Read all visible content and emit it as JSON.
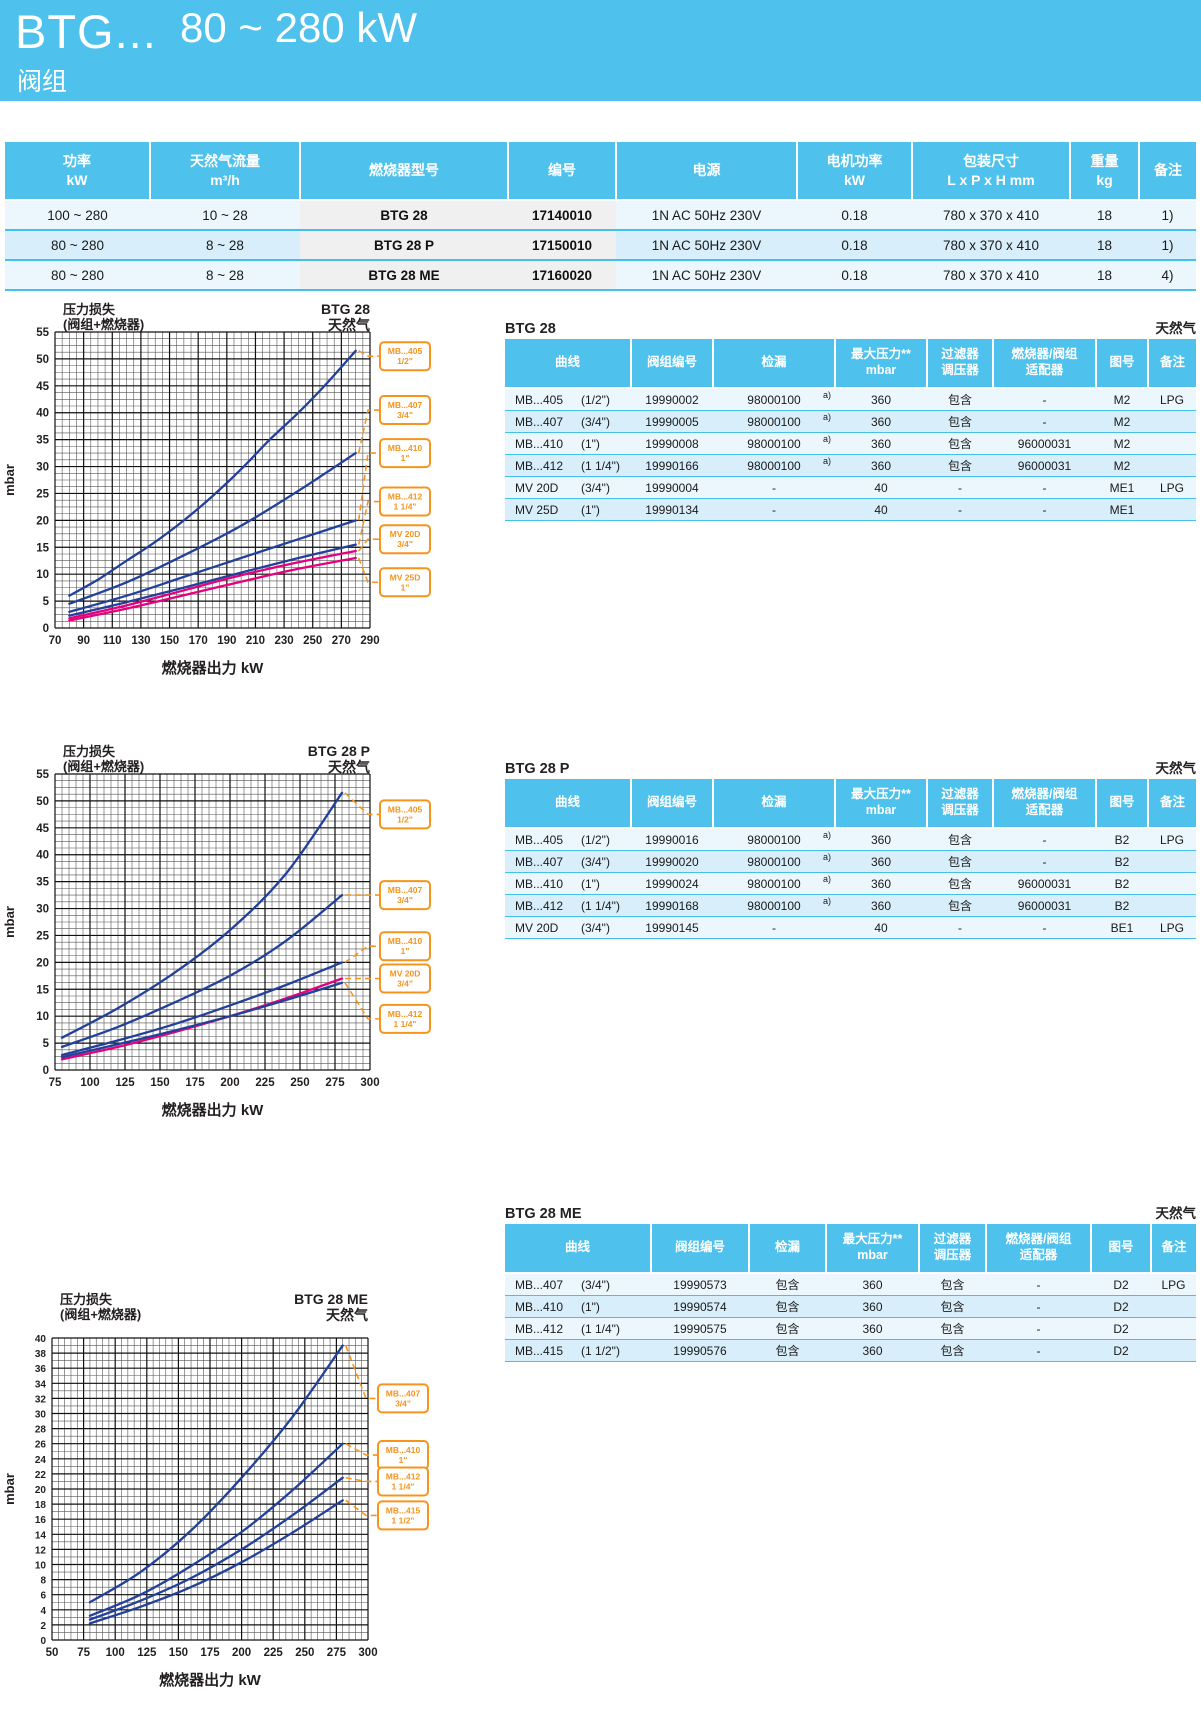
{
  "header": {
    "model": "BTG...",
    "power_range": "80 ~ 280 kW",
    "subtitle": "阀组"
  },
  "colors": {
    "brand_blue": "#4ec1ec",
    "row_light": "#ebf7fd",
    "row_dark": "#d8eefa",
    "curve_blue": "#23409a",
    "curve_pink": "#e6007e",
    "label_orange": "#f7941d",
    "grid": "#231f20"
  },
  "main_table": {
    "headers": [
      {
        "l1": "功率",
        "l2": "kW"
      },
      {
        "l1": "天然气流量",
        "l2": "m³/h"
      },
      {
        "l1": "燃烧器型号",
        "l2": ""
      },
      {
        "l1": "编号",
        "l2": ""
      },
      {
        "l1": "电源",
        "l2": ""
      },
      {
        "l1": "电机功率",
        "l2": "kW"
      },
      {
        "l1": "包装尺寸",
        "l2": "L x P x H  mm"
      },
      {
        "l1": "重量",
        "l2": "kg"
      },
      {
        "l1": "备注",
        "l2": ""
      }
    ],
    "rows": [
      [
        "100 ~ 280",
        "10 ~ 28",
        "BTG 28",
        "17140010",
        "1N AC 50Hz 230V",
        "0.18",
        "780 x 370 x 410",
        "18",
        "1)"
      ],
      [
        "80 ~ 280",
        "8 ~ 28",
        "BTG 28 P",
        "17150010",
        "1N AC 50Hz 230V",
        "0.18",
        "780 x 370 x 410",
        "18",
        "1)"
      ],
      [
        "80 ~ 280",
        "8 ~ 28",
        "BTG 28 ME",
        "17160020",
        "1N AC 50Hz 230V",
        "0.18",
        "780 x 370 x 410",
        "18",
        "4)"
      ]
    ]
  },
  "sub_headers": [
    {
      "l1": "曲线",
      "l2": ""
    },
    {
      "l1": "阀组编号",
      "l2": ""
    },
    {
      "l1": "检漏",
      "l2": ""
    },
    {
      "l1": "最大压力**",
      "l2": "mbar"
    },
    {
      "l1": "过滤器",
      "l2": "调压器"
    },
    {
      "l1": "燃烧器/阀组",
      "l2": "适配器"
    },
    {
      "l1": "图号",
      "l2": ""
    },
    {
      "l1": "备注",
      "l2": ""
    }
  ],
  "sections": [
    {
      "table": {
        "title": "BTG 28",
        "right_title": "天然气",
        "rows": [
          {
            "curve": "MB...405",
            "size": "(1/2\")",
            "code": "19990002",
            "leak": "98000100",
            "leak_note": "a)",
            "pmax": "360",
            "filter": "包含",
            "adapter": "-",
            "fig": "M2",
            "note": "LPG"
          },
          {
            "curve": "MB...407",
            "size": "(3/4\")",
            "code": "19990005",
            "leak": "98000100",
            "leak_note": "a)",
            "pmax": "360",
            "filter": "包含",
            "adapter": "-",
            "fig": "M2",
            "note": ""
          },
          {
            "curve": "MB...410",
            "size": "(1\")",
            "code": "19990008",
            "leak": "98000100",
            "leak_note": "a)",
            "pmax": "360",
            "filter": "包含",
            "adapter": "96000031",
            "fig": "M2",
            "note": ""
          },
          {
            "curve": "MB...412",
            "size": "(1 1/4\")",
            "code": "19990166",
            "leak": "98000100",
            "leak_note": "a)",
            "pmax": "360",
            "filter": "包含",
            "adapter": "96000031",
            "fig": "M2",
            "note": ""
          },
          {
            "curve": "MV 20D",
            "size": "(3/4\")",
            "code": "19990004",
            "leak": "-",
            "leak_note": "",
            "pmax": "40",
            "filter": "-",
            "adapter": "-",
            "fig": "ME1",
            "note": "LPG"
          },
          {
            "curve": "MV 25D",
            "size": "(1\")",
            "code": "19990134",
            "leak": "-",
            "leak_note": "",
            "pmax": "40",
            "filter": "-",
            "adapter": "-",
            "fig": "ME1",
            "note": ""
          }
        ]
      },
      "chart": {
        "type": "line",
        "title_left_1": "压力损失",
        "title_left_2": "(阀组+燃烧器)",
        "title_right_1": "BTG 28",
        "title_right_2": "天然气",
        "ylabel": "mbar",
        "xlabel": "燃烧器出力  kW",
        "xmin": 70,
        "xmax": 290,
        "xtick": 20,
        "xminor": 5,
        "ymin": 0,
        "ymax": 55,
        "ytick": 5,
        "yminor": 1.25,
        "series": [
          {
            "name": "MB...405 1/2\"",
            "color": "#23409a",
            "points": [
              [
                80,
                6
              ],
              [
                100,
                9
              ],
              [
                120,
                12.5
              ],
              [
                140,
                16
              ],
              [
                160,
                20
              ],
              [
                180,
                24.5
              ],
              [
                200,
                29.5
              ],
              [
                220,
                35
              ],
              [
                240,
                40
              ],
              [
                260,
                45.5
              ],
              [
                280,
                51.5
              ]
            ]
          },
          {
            "name": "MB...407 3/4\"",
            "color": "#23409a",
            "points": [
              [
                80,
                4.5
              ],
              [
                120,
                8.5
              ],
              [
                160,
                13.5
              ],
              [
                200,
                19
              ],
              [
                240,
                25.5
              ],
              [
                280,
                32.5
              ]
            ]
          },
          {
            "name": "MB...410 1\"",
            "color": "#23409a",
            "points": [
              [
                80,
                3
              ],
              [
                120,
                6
              ],
              [
                160,
                9.5
              ],
              [
                200,
                13
              ],
              [
                240,
                16.5
              ],
              [
                280,
                20
              ]
            ]
          },
          {
            "name": "MB...412 1 1/4\"",
            "color": "#23409a",
            "points": [
              [
                80,
                2.3
              ],
              [
                120,
                4.8
              ],
              [
                160,
                7.5
              ],
              [
                200,
                10.3
              ],
              [
                240,
                13
              ],
              [
                280,
                15.5
              ]
            ]
          },
          {
            "name": "MV 20D 3/4\"",
            "color": "#e6007e",
            "points": [
              [
                80,
                1.8
              ],
              [
                120,
                4.2
              ],
              [
                160,
                7
              ],
              [
                200,
                9.8
              ],
              [
                240,
                12.2
              ],
              [
                280,
                14.3
              ]
            ]
          },
          {
            "name": "MV 25D 1\"",
            "color": "#e6007e",
            "points": [
              [
                80,
                1.4
              ],
              [
                120,
                3.6
              ],
              [
                160,
                6.1
              ],
              [
                200,
                8.6
              ],
              [
                240,
                11
              ],
              [
                280,
                13
              ]
            ]
          }
        ],
        "labels": [
          {
            "line1": "MB...405",
            "line2": "1/2\"",
            "y": 50.5,
            "series": 0
          },
          {
            "line1": "MB...407",
            "line2": "3/4\"",
            "y": 40.5,
            "series": 1
          },
          {
            "line1": "MB...410",
            "line2": "1\"",
            "y": 32.5,
            "series": 2
          },
          {
            "line1": "MB...412",
            "line2": "1 1/4\"",
            "y": 23.5,
            "series": 3
          },
          {
            "line1": "MV  20D",
            "line2": "3/4\"",
            "y": 16.5,
            "series": 4
          },
          {
            "line1": "MV  25D",
            "line2": "1\"",
            "y": 8.5,
            "series": 5
          }
        ]
      }
    },
    {
      "table": {
        "title": "BTG 28 P",
        "right_title": "天然气",
        "rows": [
          {
            "curve": "MB...405",
            "size": "(1/2\")",
            "code": "19990016",
            "leak": "98000100",
            "leak_note": "a)",
            "pmax": "360",
            "filter": "包含",
            "adapter": "-",
            "fig": "B2",
            "note": "LPG"
          },
          {
            "curve": "MB...407",
            "size": "(3/4\")",
            "code": "19990020",
            "leak": "98000100",
            "leak_note": "a)",
            "pmax": "360",
            "filter": "包含",
            "adapter": "-",
            "fig": "B2",
            "note": ""
          },
          {
            "curve": "MB...410",
            "size": "(1\")",
            "code": "19990024",
            "leak": "98000100",
            "leak_note": "a)",
            "pmax": "360",
            "filter": "包含",
            "adapter": "96000031",
            "fig": "B2",
            "note": ""
          },
          {
            "curve": "MB...412",
            "size": "(1 1/4\")",
            "code": "19990168",
            "leak": "98000100",
            "leak_note": "a)",
            "pmax": "360",
            "filter": "包含",
            "adapter": "96000031",
            "fig": "B2",
            "note": ""
          },
          {
            "curve": "MV 20D",
            "size": "(3/4\")",
            "code": "19990145",
            "leak": "-",
            "leak_note": "",
            "pmax": "40",
            "filter": "-",
            "adapter": "-",
            "fig": "BE1",
            "note": "LPG"
          }
        ]
      },
      "chart": {
        "type": "line",
        "title_left_1": "压力损失",
        "title_left_2": "(阀组+燃烧器)",
        "title_right_1": "BTG 28 P",
        "title_right_2": "天然气",
        "ylabel": "mbar",
        "xlabel": "燃烧器出力  kW",
        "xmin": 75,
        "xmax": 300,
        "xtick": 25,
        "xminor": 5,
        "ymin": 0,
        "ymax": 55,
        "ytick": 5,
        "yminor": 1.25,
        "series": [
          {
            "name": "MB...405 1/2\"",
            "color": "#23409a",
            "points": [
              [
                80,
                6
              ],
              [
                120,
                11.5
              ],
              [
                160,
                18
              ],
              [
                200,
                26
              ],
              [
                240,
                36.5
              ],
              [
                280,
                51.5
              ]
            ]
          },
          {
            "name": "MB...407 3/4\"",
            "color": "#23409a",
            "points": [
              [
                80,
                4.3
              ],
              [
                120,
                8
              ],
              [
                160,
                12.5
              ],
              [
                200,
                17.5
              ],
              [
                240,
                24
              ],
              [
                280,
                32.5
              ]
            ]
          },
          {
            "name": "MB...410 1\"",
            "color": "#23409a",
            "points": [
              [
                80,
                2.8
              ],
              [
                120,
                5.5
              ],
              [
                160,
                8.5
              ],
              [
                200,
                12
              ],
              [
                240,
                15.8
              ],
              [
                280,
                20
              ]
            ]
          },
          {
            "name": "MV 20D 3/4\"",
            "color": "#e6007e",
            "points": [
              [
                80,
                2
              ],
              [
                120,
                4.3
              ],
              [
                160,
                7
              ],
              [
                200,
                10
              ],
              [
                240,
                13.3
              ],
              [
                280,
                17
              ]
            ]
          },
          {
            "name": "MB...412 1 1/4\"",
            "color": "#23409a",
            "points": [
              [
                80,
                2.4
              ],
              [
                120,
                4.8
              ],
              [
                160,
                7.3
              ],
              [
                200,
                10
              ],
              [
                240,
                13
              ],
              [
                280,
                16.2
              ]
            ]
          }
        ],
        "labels": [
          {
            "line1": "MB...405",
            "line2": "1/2\"",
            "y": 47.5,
            "series": 0
          },
          {
            "line1": "MB...407",
            "line2": "3/4\"",
            "y": 32.5,
            "series": 1
          },
          {
            "line1": "MB...410",
            "line2": "1\"",
            "y": 23,
            "series": 2
          },
          {
            "line1": "MV  20D",
            "line2": "3/4\"",
            "y": 17,
            "series": 3
          },
          {
            "line1": "MB...412",
            "line2": "1 1/4\"",
            "y": 9.5,
            "series": 4
          }
        ]
      }
    },
    {
      "table": {
        "title": "BTG 28 ME",
        "right_title": "天然气",
        "rows": [
          {
            "curve": "MB...407",
            "size": "(3/4\")",
            "code": "19990573",
            "leak": "包含",
            "leak_note": "",
            "pmax": "360",
            "filter": "包含",
            "adapter": "-",
            "fig": "D2",
            "note": "LPG"
          },
          {
            "curve": "MB...410",
            "size": "(1\")",
            "code": "19990574",
            "leak": "包含",
            "leak_note": "",
            "pmax": "360",
            "filter": "包含",
            "adapter": "-",
            "fig": "D2",
            "note": ""
          },
          {
            "curve": "MB...412",
            "size": "(1 1/4\")",
            "code": "19990575",
            "leak": "包含",
            "leak_note": "",
            "pmax": "360",
            "filter": "包含",
            "adapter": "-",
            "fig": "D2",
            "note": ""
          },
          {
            "curve": "MB...415",
            "size": "(1 1/2\")",
            "code": "19990576",
            "leak": "包含",
            "leak_note": "",
            "pmax": "360",
            "filter": "包含",
            "adapter": "-",
            "fig": "D2",
            "note": ""
          }
        ]
      },
      "chart": {
        "type": "line",
        "title_left_1": "压力损失",
        "title_left_2": "(阀组+燃烧器)",
        "title_right_1": "BTG 28 ME",
        "title_right_2": "天然气",
        "ylabel": "mbar",
        "xlabel": "燃烧器出力  kW",
        "xmin": 50,
        "xmax": 300,
        "xtick": 25,
        "xminor": 5,
        "ymin": 0,
        "ymax": 40,
        "ytick": 2,
        "yminor": 1,
        "series": [
          {
            "name": "MB...407 3/4\"",
            "color": "#23409a",
            "points": [
              [
                80,
                5
              ],
              [
                120,
                9
              ],
              [
                160,
                14.5
              ],
              [
                200,
                21.5
              ],
              [
                240,
                29.5
              ],
              [
                280,
                39
              ]
            ]
          },
          {
            "name": "MB...410 1\"",
            "color": "#23409a",
            "points": [
              [
                80,
                3.2
              ],
              [
                120,
                6
              ],
              [
                160,
                9.8
              ],
              [
                200,
                14.3
              ],
              [
                240,
                19.8
              ],
              [
                280,
                26
              ]
            ]
          },
          {
            "name": "MB...412 1 1/4\"",
            "color": "#23409a",
            "points": [
              [
                80,
                2.7
              ],
              [
                120,
                5.2
              ],
              [
                160,
                8.2
              ],
              [
                200,
                12
              ],
              [
                240,
                16.5
              ],
              [
                280,
                21.5
              ]
            ]
          },
          {
            "name": "MB...415 1 1/2\"",
            "color": "#23409a",
            "points": [
              [
                80,
                2.2
              ],
              [
                120,
                4.4
              ],
              [
                160,
                7
              ],
              [
                200,
                10.3
              ],
              [
                240,
                14.2
              ],
              [
                280,
                18.5
              ]
            ]
          }
        ],
        "labels": [
          {
            "line1": "MB...407",
            "line2": "3/4\"",
            "y": 32,
            "series": 0
          },
          {
            "line1": "MB...410",
            "line2": "1\"",
            "y": 24.5,
            "series": 1
          },
          {
            "line1": "MB...412",
            "line2": "1 1/4\"",
            "y": 21,
            "series": 2
          },
          {
            "line1": "MB...415",
            "line2": "1 1/2\"",
            "y": 16.5,
            "series": 3
          }
        ]
      }
    }
  ]
}
